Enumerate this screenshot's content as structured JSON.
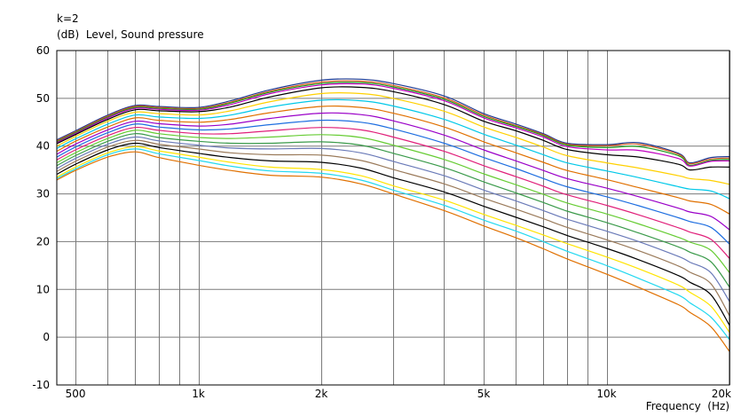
{
  "header": {
    "k_label": "k=2"
  },
  "chart_data": {
    "type": "line",
    "title": "",
    "ylabel": "(dB)  Level, Sound pressure",
    "xlabel": "Frequency  (Hz)",
    "x_scale": "log",
    "xlim": [
      450,
      20000
    ],
    "ylim": [
      -10,
      60
    ],
    "grid": true,
    "y_ticks": [
      -10,
      0,
      10,
      20,
      30,
      40,
      50,
      60
    ],
    "x_ticks": [
      {
        "value": 500,
        "label": "500"
      },
      {
        "value": 1000,
        "label": "1k"
      },
      {
        "value": 2000,
        "label": "2k"
      },
      {
        "value": 5000,
        "label": "5k"
      },
      {
        "value": 10000,
        "label": "10k"
      },
      {
        "value": 20000,
        "label": "20k"
      }
    ],
    "x_minor_grid": [
      600,
      700,
      800,
      900,
      3000,
      4000,
      6000,
      7000,
      8000,
      9000
    ],
    "x": [
      450,
      500,
      600,
      700,
      800,
      1000,
      1200,
      1500,
      2000,
      2500,
      3000,
      4000,
      5000,
      6000,
      7000,
      8000,
      10000,
      12000,
      15000,
      16000,
      18000,
      20000
    ],
    "series": [
      {
        "color": "#1f3a93",
        "values": [
          41.3,
          43.2,
          46.5,
          48.5,
          48.3,
          48.1,
          49.5,
          51.8,
          53.8,
          54.0,
          53.1,
          50.5,
          46.8,
          44.6,
          42.6,
          40.6,
          40.3,
          40.7,
          38.5,
          36.5,
          37.6,
          37.8
        ]
      },
      {
        "color": "#d85a1e",
        "values": [
          41.1,
          43.0,
          46.3,
          48.3,
          48.1,
          47.9,
          49.2,
          51.5,
          53.4,
          53.6,
          52.7,
          50.1,
          46.5,
          44.3,
          42.4,
          40.4,
          40.1,
          40.4,
          38.3,
          36.3,
          37.3,
          37.5
        ]
      },
      {
        "color": "#1a9a1a",
        "values": [
          40.9,
          42.8,
          46.1,
          48.1,
          47.9,
          47.7,
          49.0,
          51.3,
          53.1,
          53.3,
          52.4,
          49.8,
          46.2,
          44.1,
          42.2,
          40.2,
          39.7,
          39.9,
          38.0,
          36.0,
          37.0,
          37.2
        ]
      },
      {
        "color": "#c000c0",
        "values": [
          40.7,
          42.6,
          45.9,
          47.9,
          47.7,
          47.5,
          48.7,
          51.0,
          52.8,
          53.0,
          52.1,
          49.5,
          45.9,
          43.8,
          41.9,
          39.9,
          39.2,
          39.1,
          37.4,
          35.8,
          36.8,
          36.9
        ]
      },
      {
        "color": "#000000",
        "values": [
          40.5,
          42.4,
          45.6,
          47.6,
          47.4,
          47.2,
          48.2,
          50.3,
          52.2,
          52.3,
          51.4,
          48.7,
          45.2,
          43.2,
          41.2,
          39.3,
          38.2,
          37.7,
          36.2,
          35.0,
          35.6,
          35.6
        ]
      },
      {
        "color": "#ffd000",
        "values": [
          40.0,
          42.0,
          45.2,
          47.1,
          46.8,
          46.5,
          47.4,
          49.3,
          51.0,
          51.0,
          50.0,
          47.3,
          44.0,
          41.8,
          39.8,
          38.0,
          36.5,
          35.4,
          33.8,
          33.2,
          32.8,
          32.0
        ]
      },
      {
        "color": "#00c8e8",
        "values": [
          39.5,
          41.5,
          44.6,
          46.5,
          46.1,
          45.8,
          46.5,
          48.2,
          49.6,
          49.5,
          48.4,
          45.6,
          42.5,
          40.2,
          38.2,
          36.5,
          34.8,
          33.4,
          31.5,
          31.0,
          30.6,
          29.0
        ]
      },
      {
        "color": "#e07000",
        "values": [
          38.9,
          41.0,
          44.0,
          45.9,
          45.4,
          45.0,
          45.6,
          47.0,
          48.3,
          48.1,
          46.9,
          44.0,
          40.9,
          38.6,
          36.6,
          34.9,
          33.0,
          31.3,
          29.2,
          28.5,
          27.8,
          25.8
        ]
      },
      {
        "color": "#9a00c8",
        "values": [
          38.3,
          40.4,
          43.4,
          45.2,
          44.7,
          44.2,
          44.6,
          45.8,
          46.9,
          46.6,
          45.3,
          42.3,
          39.2,
          36.9,
          34.9,
          33.2,
          31.2,
          29.4,
          27.0,
          26.2,
          25.3,
          22.5
        ]
      },
      {
        "color": "#1e6ee0",
        "values": [
          37.7,
          39.8,
          42.8,
          44.6,
          44.0,
          43.4,
          43.6,
          44.5,
          45.4,
          45.0,
          43.6,
          40.6,
          37.6,
          35.3,
          33.2,
          31.5,
          29.4,
          27.5,
          25.0,
          24.2,
          23.0,
          19.5
        ]
      },
      {
        "color": "#e0207a",
        "values": [
          37.1,
          39.2,
          42.2,
          43.9,
          43.3,
          42.6,
          42.6,
          43.2,
          43.9,
          43.4,
          41.9,
          38.9,
          35.9,
          33.6,
          31.6,
          29.8,
          27.6,
          25.6,
          22.9,
          22.0,
          20.5,
          16.5
        ]
      },
      {
        "color": "#66cc33",
        "values": [
          36.5,
          38.6,
          41.6,
          43.3,
          42.6,
          41.8,
          41.6,
          41.9,
          42.4,
          41.8,
          40.2,
          37.2,
          34.2,
          31.9,
          29.9,
          28.1,
          25.8,
          23.7,
          20.9,
          19.9,
          18.2,
          13.5
        ]
      },
      {
        "color": "#3a9a4a",
        "values": [
          35.9,
          38.0,
          41.0,
          42.6,
          41.8,
          41.0,
          40.6,
          40.6,
          40.9,
          40.2,
          38.5,
          35.5,
          32.5,
          30.2,
          28.2,
          26.4,
          24.0,
          21.8,
          18.9,
          17.8,
          15.8,
          10.5
        ]
      },
      {
        "color": "#6a7ab8",
        "values": [
          35.3,
          37.4,
          40.4,
          41.9,
          41.1,
          40.2,
          39.6,
          39.4,
          39.5,
          38.6,
          36.8,
          33.8,
          30.8,
          28.5,
          26.5,
          24.7,
          22.2,
          20.0,
          16.9,
          15.7,
          13.5,
          7.5
        ]
      },
      {
        "color": "#9a7a5a",
        "values": [
          34.7,
          36.8,
          39.8,
          41.2,
          40.4,
          39.4,
          38.6,
          38.2,
          38.1,
          37.0,
          35.1,
          32.1,
          29.1,
          26.8,
          24.8,
          23.0,
          20.4,
          18.1,
          14.9,
          13.6,
          11.2,
          4.5
        ]
      },
      {
        "color": "#000000",
        "values": [
          34.1,
          36.2,
          39.2,
          40.6,
          39.7,
          38.5,
          37.6,
          36.9,
          36.6,
          35.4,
          33.4,
          30.4,
          27.4,
          25.1,
          23.1,
          21.3,
          18.6,
          16.2,
          12.9,
          11.5,
          8.9,
          2.5
        ]
      },
      {
        "color": "#ffe400",
        "values": [
          33.5,
          35.6,
          38.6,
          39.9,
          39.0,
          37.7,
          36.6,
          35.6,
          35.1,
          33.8,
          31.7,
          28.7,
          25.7,
          23.4,
          21.4,
          19.6,
          16.8,
          14.3,
          10.9,
          9.4,
          6.5,
          1.0
        ]
      },
      {
        "color": "#22d8f0",
        "values": [
          33.2,
          35.2,
          38.2,
          39.4,
          38.4,
          37.0,
          35.8,
          34.8,
          34.3,
          32.9,
          30.8,
          27.6,
          24.5,
          22.2,
          20.0,
          18.0,
          15.0,
          12.3,
          8.8,
          7.2,
          4.2,
          -0.5
        ]
      },
      {
        "color": "#e07000",
        "values": [
          32.9,
          34.9,
          37.7,
          38.8,
          37.6,
          36.0,
          34.9,
          33.9,
          33.5,
          32.1,
          30.0,
          26.5,
          23.3,
          20.8,
          18.5,
          16.4,
          13.2,
          10.4,
          6.8,
          5.2,
          2.2,
          -3.0
        ]
      }
    ]
  }
}
